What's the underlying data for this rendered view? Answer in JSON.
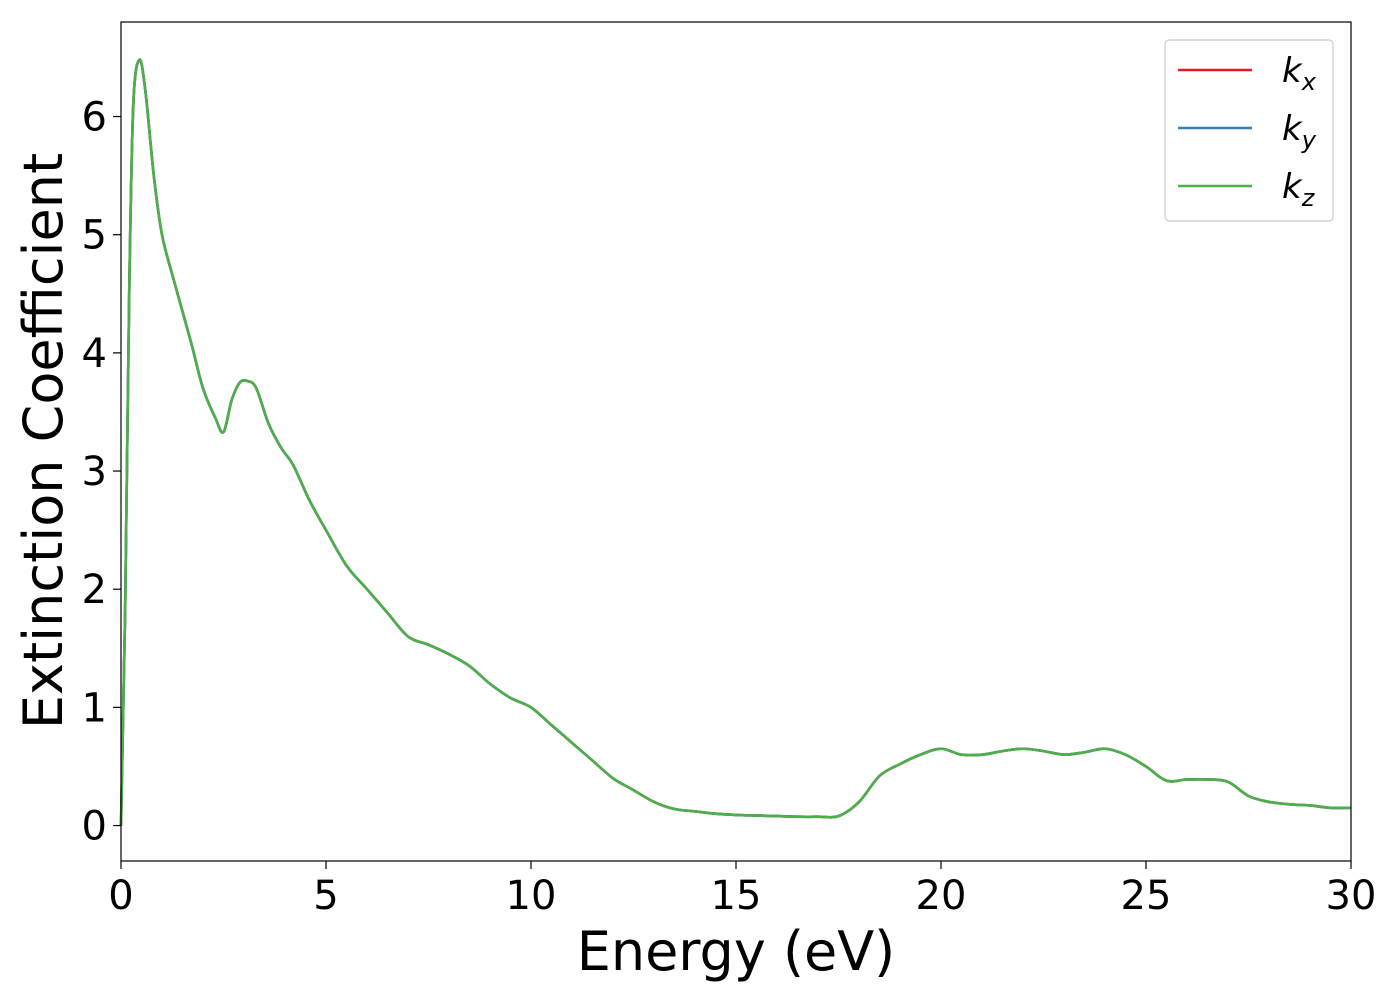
{
  "chart_data": {
    "type": "line",
    "title": "",
    "xlabel": "Energy (eV)",
    "ylabel": "Extinction Coefficient",
    "xlim": [
      0,
      30
    ],
    "ylim": [
      -0.3,
      6.8
    ],
    "xticks": [
      0,
      5,
      10,
      15,
      20,
      25,
      30
    ],
    "yticks": [
      0,
      1,
      2,
      3,
      4,
      5,
      6
    ],
    "grid": false,
    "legend_position": "top-right",
    "x": [
      0,
      0.1,
      0.2,
      0.3,
      0.45,
      0.6,
      0.8,
      1.0,
      1.3,
      1.7,
      2.0,
      2.3,
      2.5,
      2.7,
      2.9,
      3.1,
      3.3,
      3.6,
      3.9,
      4.2,
      4.6,
      5.0,
      5.5,
      6.0,
      6.5,
      7.0,
      7.5,
      8.0,
      8.5,
      9.0,
      9.5,
      10.0,
      10.5,
      11.0,
      11.5,
      12.0,
      12.5,
      13.0,
      13.5,
      14.0,
      14.5,
      15.0,
      15.5,
      16.0,
      16.5,
      17.0,
      17.5,
      18.0,
      18.5,
      19.0,
      19.5,
      20.0,
      20.5,
      21.0,
      21.5,
      22.0,
      22.5,
      23.0,
      23.5,
      24.0,
      24.5,
      25.0,
      25.5,
      26.0,
      26.5,
      27.0,
      27.5,
      28.0,
      28.5,
      29.0,
      29.5,
      30.0
    ],
    "series": [
      {
        "name": "k_x",
        "label_main": "k",
        "label_sub": "x",
        "color": "#e41a1c",
        "values": [
          0.0,
          1.8,
          4.5,
          6.1,
          6.48,
          6.2,
          5.5,
          5.0,
          4.6,
          4.1,
          3.7,
          3.45,
          3.33,
          3.6,
          3.75,
          3.76,
          3.7,
          3.4,
          3.2,
          3.05,
          2.75,
          2.5,
          2.2,
          2.0,
          1.8,
          1.6,
          1.53,
          1.45,
          1.35,
          1.2,
          1.08,
          1.0,
          0.85,
          0.7,
          0.55,
          0.4,
          0.3,
          0.2,
          0.14,
          0.12,
          0.1,
          0.09,
          0.085,
          0.08,
          0.075,
          0.075,
          0.08,
          0.2,
          0.42,
          0.52,
          0.6,
          0.65,
          0.6,
          0.6,
          0.63,
          0.65,
          0.63,
          0.6,
          0.62,
          0.65,
          0.6,
          0.5,
          0.38,
          0.39,
          0.39,
          0.37,
          0.25,
          0.2,
          0.18,
          0.17,
          0.15,
          0.15
        ]
      },
      {
        "name": "k_y",
        "label_main": "k",
        "label_sub": "y",
        "color": "#377eb8",
        "values": [
          0.0,
          1.8,
          4.5,
          6.1,
          6.48,
          6.2,
          5.5,
          5.0,
          4.6,
          4.1,
          3.7,
          3.45,
          3.33,
          3.6,
          3.75,
          3.76,
          3.7,
          3.4,
          3.2,
          3.05,
          2.75,
          2.5,
          2.2,
          2.0,
          1.8,
          1.6,
          1.53,
          1.45,
          1.35,
          1.2,
          1.08,
          1.0,
          0.85,
          0.7,
          0.55,
          0.4,
          0.3,
          0.2,
          0.14,
          0.12,
          0.1,
          0.09,
          0.085,
          0.08,
          0.075,
          0.075,
          0.08,
          0.2,
          0.42,
          0.52,
          0.6,
          0.65,
          0.6,
          0.6,
          0.63,
          0.65,
          0.63,
          0.6,
          0.62,
          0.65,
          0.6,
          0.5,
          0.38,
          0.39,
          0.39,
          0.37,
          0.25,
          0.2,
          0.18,
          0.17,
          0.15,
          0.15
        ]
      },
      {
        "name": "k_z",
        "label_main": "k",
        "label_sub": "z",
        "color": "#4daf4a",
        "values": [
          0.0,
          1.8,
          4.5,
          6.1,
          6.48,
          6.2,
          5.5,
          5.0,
          4.6,
          4.1,
          3.7,
          3.45,
          3.33,
          3.6,
          3.75,
          3.76,
          3.7,
          3.4,
          3.2,
          3.05,
          2.75,
          2.5,
          2.2,
          2.0,
          1.8,
          1.6,
          1.53,
          1.45,
          1.35,
          1.2,
          1.08,
          1.0,
          0.85,
          0.7,
          0.55,
          0.4,
          0.3,
          0.2,
          0.14,
          0.12,
          0.1,
          0.09,
          0.085,
          0.08,
          0.075,
          0.075,
          0.08,
          0.2,
          0.42,
          0.52,
          0.6,
          0.65,
          0.6,
          0.6,
          0.63,
          0.65,
          0.63,
          0.6,
          0.62,
          0.65,
          0.6,
          0.5,
          0.38,
          0.39,
          0.39,
          0.37,
          0.25,
          0.2,
          0.18,
          0.17,
          0.15,
          0.15
        ]
      }
    ]
  }
}
